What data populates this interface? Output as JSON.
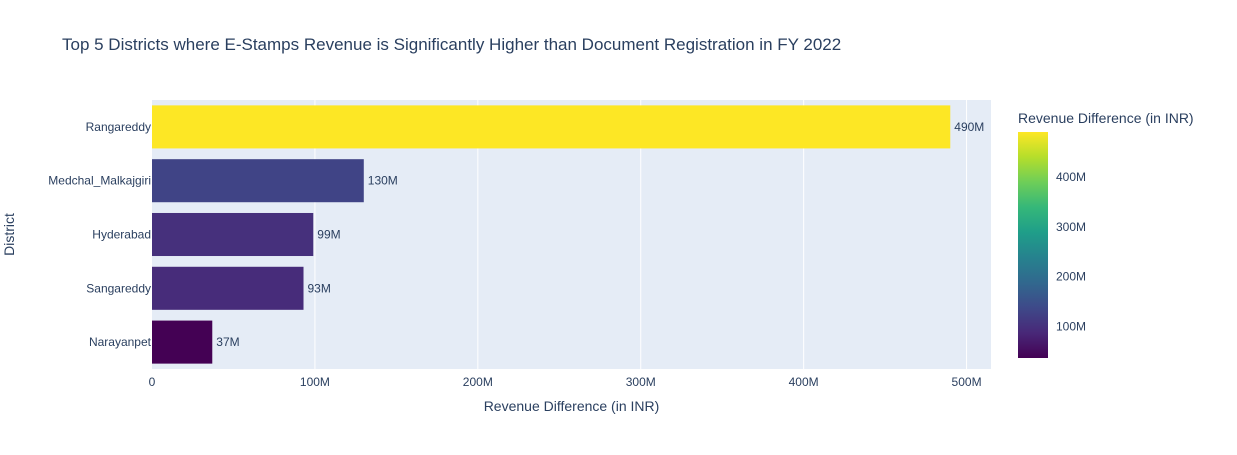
{
  "chart_data": {
    "type": "bar",
    "orientation": "horizontal",
    "title": "Top 5 Districts where E-Stamps Revenue is Significantly Higher than Document Registration in FY 2022",
    "xlabel": "Revenue Difference (in INR)",
    "ylabel": "District",
    "categories": [
      "Rangareddy",
      "Medchal_Malkajgiri",
      "Hyderabad",
      "Sangareddy",
      "Narayanpet"
    ],
    "values": [
      490000000,
      130000000,
      99000000,
      93000000,
      37000000
    ],
    "data_labels": [
      "490M",
      "130M",
      "99M",
      "93M",
      "37M"
    ],
    "xlim": [
      0,
      515000000
    ],
    "x_ticks": [
      0,
      100000000,
      200000000,
      300000000,
      400000000,
      500000000
    ],
    "x_tick_labels": [
      "0",
      "100M",
      "200M",
      "300M",
      "400M",
      "500M"
    ],
    "grid": true,
    "colorbar": {
      "title": "Revenue Difference (in INR)",
      "colorscale": "Viridis",
      "range": [
        37000000,
        490000000
      ],
      "ticks": [
        100000000,
        200000000,
        300000000,
        400000000
      ],
      "tick_labels": [
        "100M",
        "200M",
        "300M",
        "400M"
      ],
      "placement": "right"
    },
    "plot_background": "#e5ecf6",
    "text_color": "#2a3f5f"
  }
}
